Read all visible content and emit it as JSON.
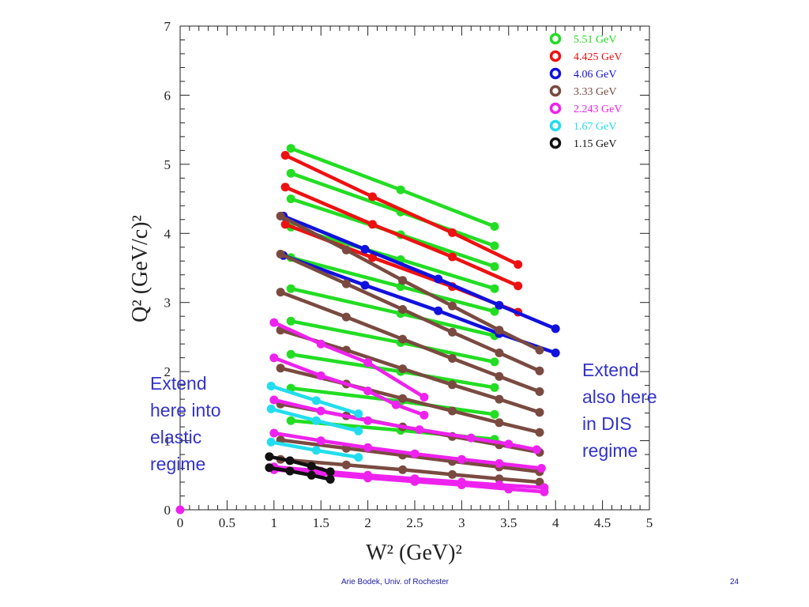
{
  "annotations": {
    "left": "Extend\nhere into\nelastic\nregime",
    "right": "Extend\nalso here\nin DIS\nregime"
  },
  "footer": {
    "author": "Arie Bodek,  Univ. of Rochester",
    "page": "24"
  },
  "chart_data": {
    "type": "scatter",
    "xlabel": "W²  (GeV)²",
    "ylabel": "Q²  (GeV/c)²",
    "xlim": [
      0,
      5
    ],
    "ylim": [
      0,
      7
    ],
    "xticks": [
      "0",
      "0.5",
      "1",
      "1.5",
      "2",
      "2.5",
      "3",
      "3.5",
      "4",
      "4.5",
      "5"
    ],
    "yticks": [
      "0",
      "1",
      "2",
      "3",
      "4",
      "5",
      "6",
      "7"
    ],
    "legend_position": "top-right",
    "series": [
      {
        "name": "5.51 GeV",
        "color": "#22dd22",
        "lines": [
          [
            [
              1.18,
              5.23
            ],
            [
              2.35,
              4.63
            ],
            [
              3.35,
              4.1
            ]
          ],
          [
            [
              1.18,
              4.87
            ],
            [
              2.35,
              4.31
            ],
            [
              3.35,
              3.82
            ]
          ],
          [
            [
              1.18,
              4.5
            ],
            [
              2.35,
              3.98
            ],
            [
              3.35,
              3.52
            ]
          ],
          [
            [
              1.18,
              4.09
            ],
            [
              2.35,
              3.62
            ],
            [
              3.35,
              3.2
            ]
          ],
          [
            [
              1.18,
              3.65
            ],
            [
              2.35,
              3.23
            ],
            [
              3.35,
              2.87
            ]
          ],
          [
            [
              1.18,
              3.2
            ],
            [
              2.35,
              2.84
            ],
            [
              3.35,
              2.52
            ]
          ],
          [
            [
              1.18,
              2.73
            ],
            [
              2.35,
              2.42
            ],
            [
              3.35,
              2.14
            ]
          ],
          [
            [
              1.18,
              2.25
            ],
            [
              2.35,
              2.0
            ],
            [
              3.35,
              1.77
            ]
          ],
          [
            [
              1.18,
              1.76
            ],
            [
              2.35,
              1.57
            ],
            [
              3.35,
              1.38
            ]
          ],
          [
            [
              1.18,
              1.29
            ],
            [
              2.35,
              1.15
            ],
            [
              3.35,
              1.02
            ]
          ]
        ]
      },
      {
        "name": "4.425 GeV",
        "color": "#ee1111",
        "lines": [
          [
            [
              1.12,
              5.13
            ],
            [
              2.05,
              4.53
            ],
            [
              2.9,
              4.01
            ],
            [
              3.6,
              3.55
            ]
          ],
          [
            [
              1.12,
              4.67
            ],
            [
              2.05,
              4.13
            ],
            [
              2.9,
              3.66
            ],
            [
              3.6,
              3.24
            ]
          ],
          [
            [
              1.12,
              4.13
            ],
            [
              2.05,
              3.65
            ],
            [
              2.9,
              3.23
            ],
            [
              3.6,
              2.86
            ]
          ]
        ]
      },
      {
        "name": "4.06 GeV",
        "color": "#1111dd",
        "lines": [
          [
            [
              1.1,
              4.25
            ],
            [
              1.97,
              3.77
            ],
            [
              2.75,
              3.34
            ],
            [
              3.4,
              2.96
            ],
            [
              4.0,
              2.62
            ]
          ],
          [
            [
              1.1,
              3.68
            ],
            [
              1.97,
              3.25
            ],
            [
              2.75,
              2.88
            ],
            [
              3.4,
              2.55
            ],
            [
              4.0,
              2.27
            ]
          ]
        ]
      },
      {
        "name": "3.33 GeV",
        "color": "#7a4a40",
        "lines": [
          [
            [
              1.07,
              4.25
            ],
            [
              1.77,
              3.76
            ],
            [
              2.37,
              3.32
            ],
            [
              2.9,
              2.95
            ],
            [
              3.4,
              2.6
            ],
            [
              3.83,
              2.31
            ]
          ],
          [
            [
              1.07,
              3.7
            ],
            [
              1.77,
              3.27
            ],
            [
              2.37,
              2.9
            ],
            [
              2.9,
              2.57
            ],
            [
              3.4,
              2.27
            ],
            [
              3.83,
              2.01
            ]
          ],
          [
            [
              1.07,
              3.15
            ],
            [
              1.77,
              2.79
            ],
            [
              2.37,
              2.47
            ],
            [
              2.9,
              2.19
            ],
            [
              3.4,
              1.93
            ],
            [
              3.83,
              1.71
            ]
          ],
          [
            [
              1.07,
              2.6
            ],
            [
              1.77,
              2.31
            ],
            [
              2.37,
              2.04
            ],
            [
              2.9,
              1.81
            ],
            [
              3.4,
              1.6
            ],
            [
              3.83,
              1.41
            ]
          ],
          [
            [
              1.07,
              2.05
            ],
            [
              1.77,
              1.82
            ],
            [
              2.37,
              1.61
            ],
            [
              2.9,
              1.43
            ],
            [
              3.4,
              1.26
            ],
            [
              3.83,
              1.12
            ]
          ],
          [
            [
              1.07,
              1.53
            ],
            [
              1.77,
              1.36
            ],
            [
              2.37,
              1.2
            ],
            [
              2.9,
              1.06
            ],
            [
              3.4,
              0.94
            ],
            [
              3.83,
              0.83
            ]
          ],
          [
            [
              1.07,
              1.01
            ],
            [
              1.77,
              0.89
            ],
            [
              2.37,
              0.79
            ],
            [
              2.9,
              0.7
            ],
            [
              3.4,
              0.62
            ],
            [
              3.83,
              0.55
            ]
          ],
          [
            [
              1.07,
              0.73
            ],
            [
              1.77,
              0.65
            ],
            [
              2.37,
              0.58
            ],
            [
              2.9,
              0.51
            ],
            [
              3.4,
              0.45
            ],
            [
              3.83,
              0.4
            ]
          ]
        ]
      },
      {
        "name": "2.243 GeV",
        "color": "#ee22ee",
        "lines": [
          [
            [
              1.0,
              2.71
            ],
            [
              1.5,
              2.4
            ],
            [
              2.0,
              2.13
            ],
            [
              2.6,
              1.63
            ]
          ],
          [
            [
              1.0,
              2.2
            ],
            [
              1.5,
              1.94
            ],
            [
              2.0,
              1.72
            ],
            [
              2.3,
              1.52
            ],
            [
              2.6,
              1.37
            ]
          ],
          [
            [
              1.0,
              1.59
            ],
            [
              1.5,
              1.43
            ],
            [
              2.0,
              1.29
            ],
            [
              2.55,
              1.16
            ],
            [
              3.1,
              1.04
            ],
            [
              3.5,
              0.95
            ],
            [
              3.8,
              0.87
            ]
          ],
          [
            [
              1.0,
              1.11
            ],
            [
              1.5,
              1.0
            ],
            [
              2.0,
              0.9
            ],
            [
              2.5,
              0.81
            ],
            [
              3.0,
              0.73
            ],
            [
              3.4,
              0.67
            ],
            [
              3.85,
              0.6
            ]
          ],
          [
            [
              1.0,
              0.62
            ],
            [
              1.5,
              0.56
            ],
            [
              2.0,
              0.5
            ],
            [
              2.5,
              0.45
            ],
            [
              3.0,
              0.4
            ],
            [
              3.4,
              0.36
            ],
            [
              3.88,
              0.32
            ]
          ],
          [
            [
              1.0,
              0.58
            ],
            [
              1.5,
              0.52
            ],
            [
              2.0,
              0.46
            ],
            [
              2.5,
              0.41
            ],
            [
              3.0,
              0.36
            ],
            [
              3.5,
              0.3
            ],
            [
              3.88,
              0.26
            ]
          ],
          [
            [
              0.0,
              0.0
            ]
          ]
        ]
      },
      {
        "name": "1.67 GeV",
        "color": "#22ddee",
        "lines": [
          [
            [
              0.97,
              1.79
            ],
            [
              1.45,
              1.58
            ],
            [
              1.9,
              1.39
            ]
          ],
          [
            [
              0.97,
              1.46
            ],
            [
              1.45,
              1.29
            ],
            [
              1.9,
              1.14
            ]
          ],
          [
            [
              0.97,
              0.98
            ],
            [
              1.45,
              0.86
            ],
            [
              1.9,
              0.76
            ]
          ]
        ]
      },
      {
        "name": "1.15 GeV",
        "color": "#111111",
        "lines": [
          [
            [
              0.95,
              0.77
            ],
            [
              1.17,
              0.71
            ],
            [
              1.4,
              0.63
            ],
            [
              1.6,
              0.55
            ]
          ],
          [
            [
              0.95,
              0.61
            ],
            [
              1.17,
              0.56
            ],
            [
              1.4,
              0.5
            ],
            [
              1.6,
              0.44
            ]
          ]
        ]
      }
    ]
  }
}
